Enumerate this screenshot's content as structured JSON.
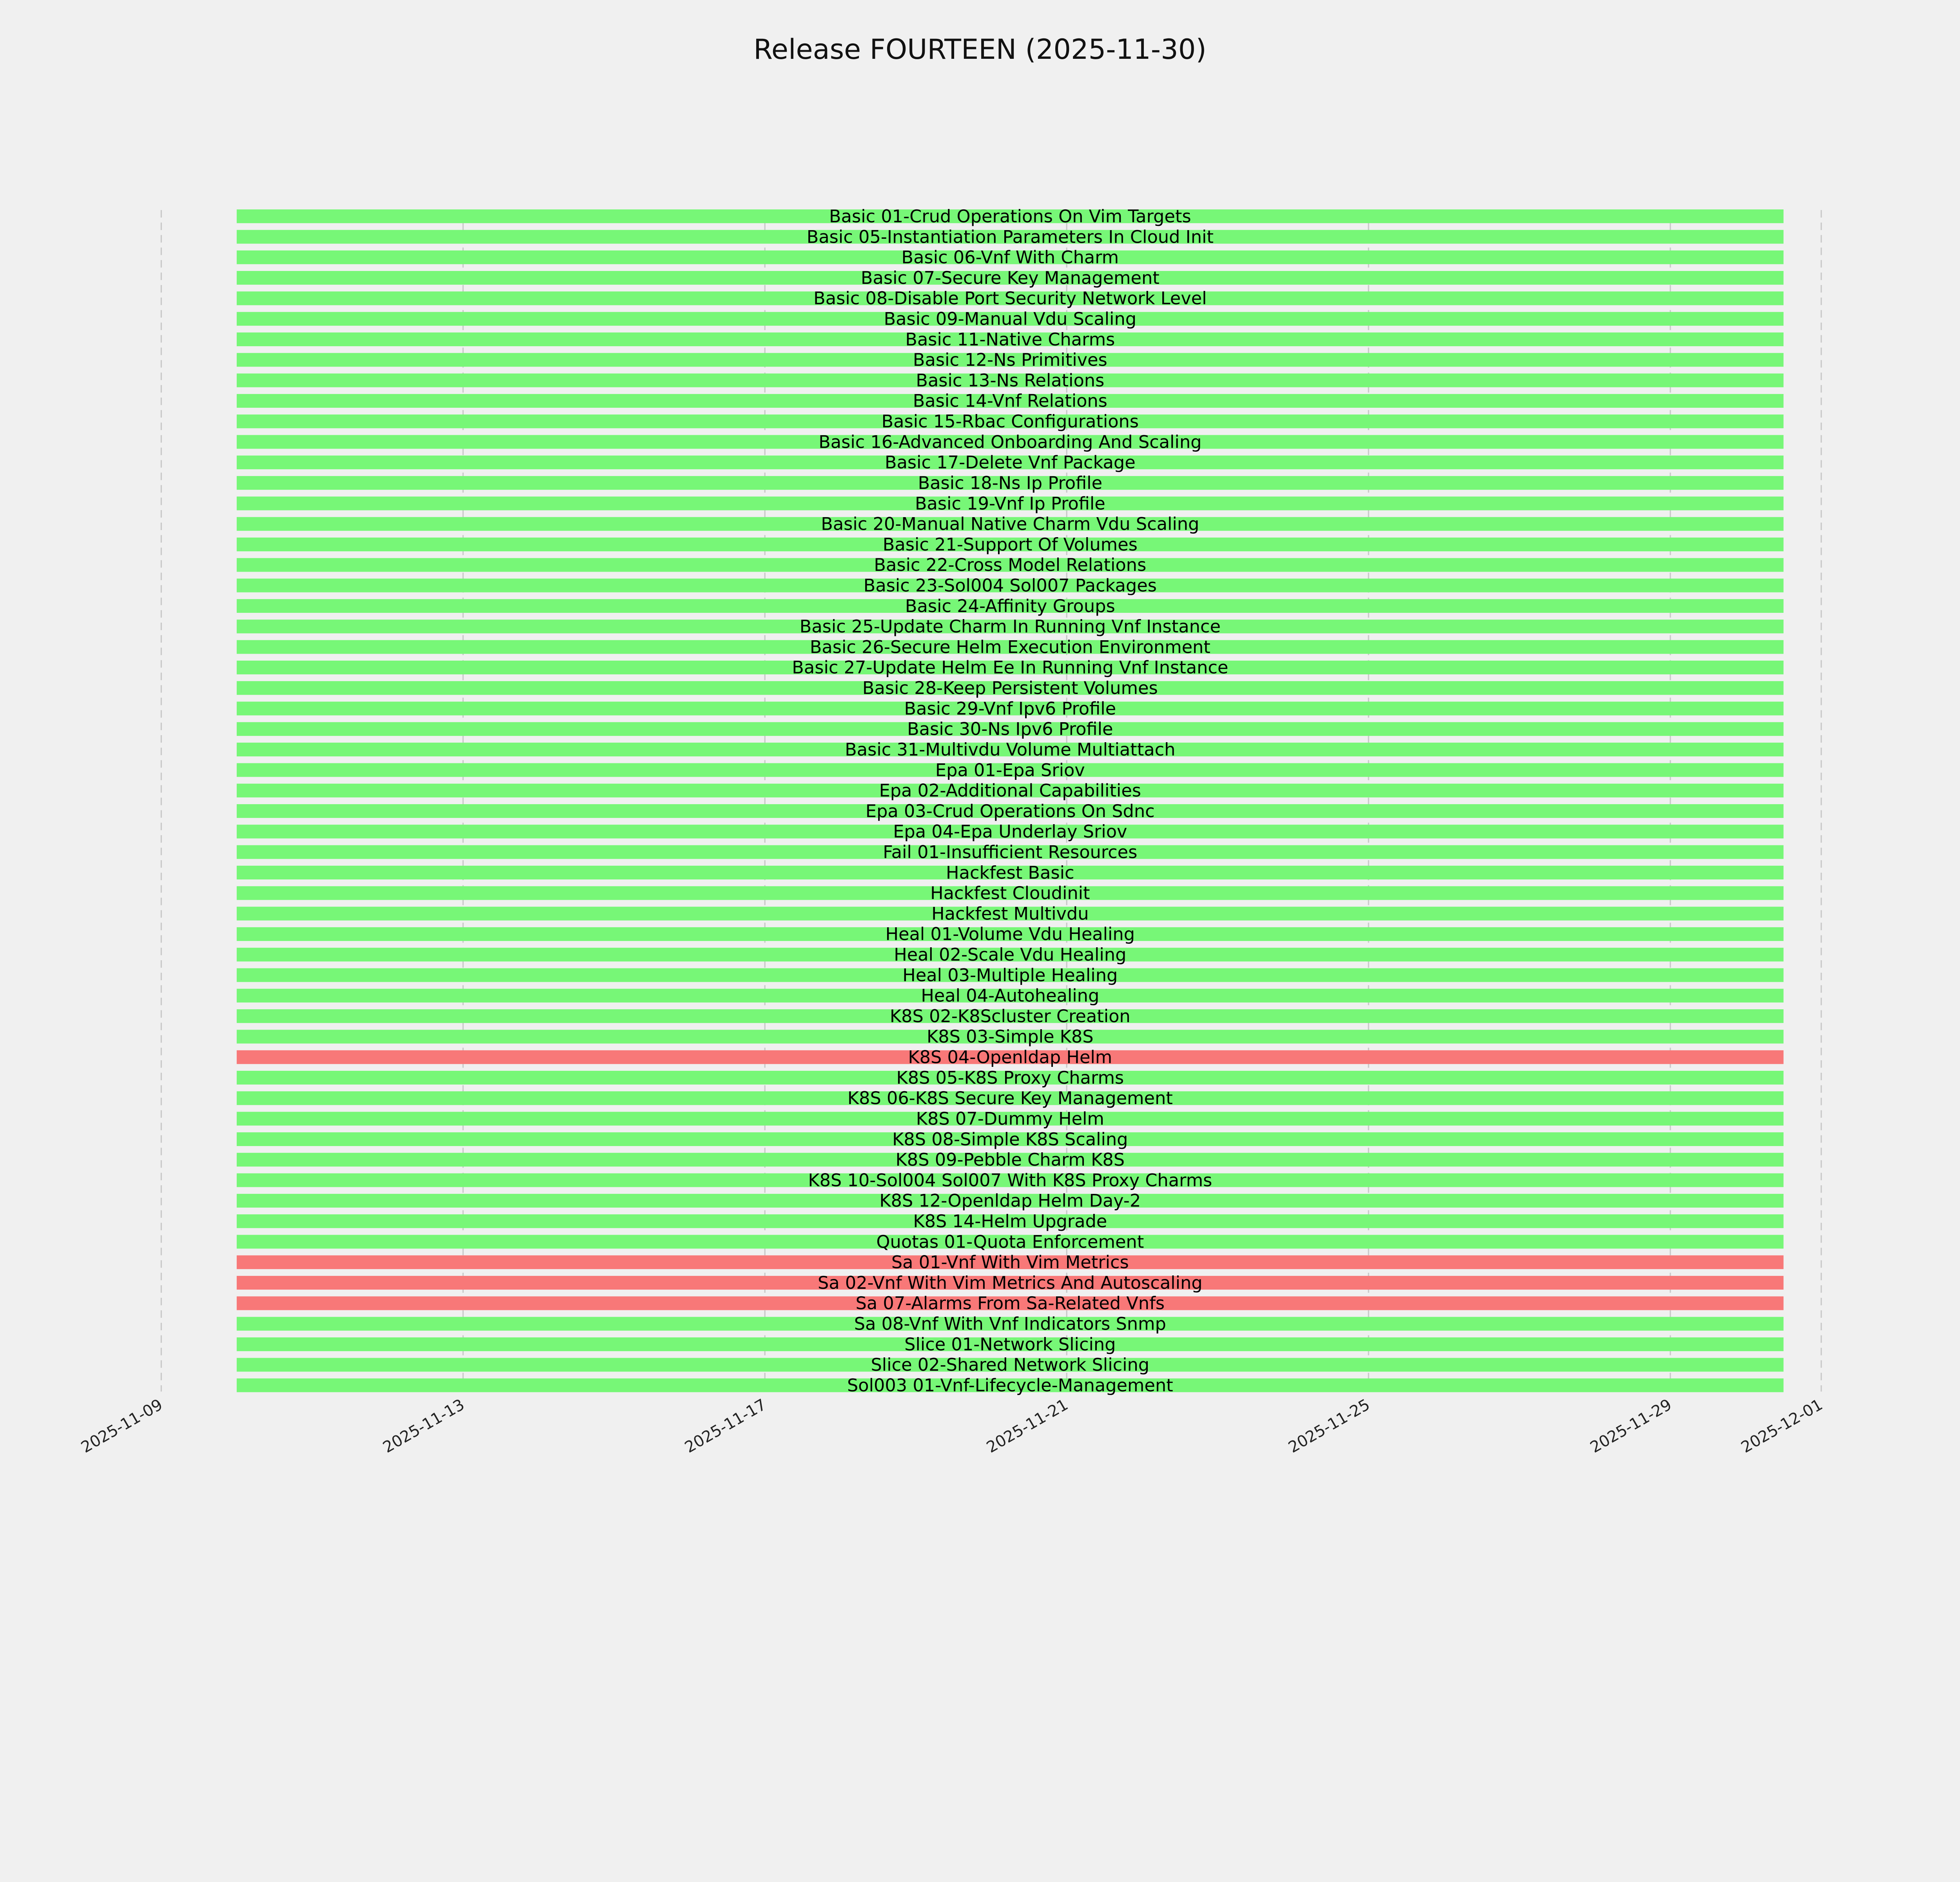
{
  "chart_data": {
    "type": "bar",
    "orientation": "horizontal-timeline",
    "title": "Release FOURTEEN (2025-11-30)",
    "xlabel": "",
    "ylabel": "",
    "xlim": [
      "2025-11-09",
      "2025-12-01"
    ],
    "x_ticks": [
      "2025-11-09",
      "2025-11-13",
      "2025-11-17",
      "2025-11-21",
      "2025-11-25",
      "2025-11-29",
      "2025-12-01"
    ],
    "grid": "vertical dashed",
    "bar_start": "2025-11-10",
    "bar_end": "2025-11-30T12:00",
    "colors": {
      "pass": "#77f777",
      "fail": "#f87878",
      "background": "#f0f0f0",
      "grid": "#c8c8c8"
    },
    "series": [
      {
        "label": "Basic 01-Crud Operations On Vim Targets",
        "status": "pass"
      },
      {
        "label": "Basic 05-Instantiation Parameters In Cloud Init",
        "status": "pass"
      },
      {
        "label": "Basic 06-Vnf With Charm",
        "status": "pass"
      },
      {
        "label": "Basic 07-Secure Key Management",
        "status": "pass"
      },
      {
        "label": "Basic 08-Disable Port Security Network Level",
        "status": "pass"
      },
      {
        "label": "Basic 09-Manual Vdu Scaling",
        "status": "pass"
      },
      {
        "label": "Basic 11-Native Charms",
        "status": "pass"
      },
      {
        "label": "Basic 12-Ns Primitives",
        "status": "pass"
      },
      {
        "label": "Basic 13-Ns Relations",
        "status": "pass"
      },
      {
        "label": "Basic 14-Vnf Relations",
        "status": "pass"
      },
      {
        "label": "Basic 15-Rbac Configurations",
        "status": "pass"
      },
      {
        "label": "Basic 16-Advanced Onboarding And Scaling",
        "status": "pass"
      },
      {
        "label": "Basic 17-Delete Vnf Package",
        "status": "pass"
      },
      {
        "label": "Basic 18-Ns Ip Profile",
        "status": "pass"
      },
      {
        "label": "Basic 19-Vnf Ip Profile",
        "status": "pass"
      },
      {
        "label": "Basic 20-Manual Native Charm Vdu Scaling",
        "status": "pass"
      },
      {
        "label": "Basic 21-Support Of Volumes",
        "status": "pass"
      },
      {
        "label": "Basic 22-Cross Model Relations",
        "status": "pass"
      },
      {
        "label": "Basic 23-Sol004 Sol007 Packages",
        "status": "pass"
      },
      {
        "label": "Basic 24-Affinity Groups",
        "status": "pass"
      },
      {
        "label": "Basic 25-Update Charm In Running Vnf Instance",
        "status": "pass"
      },
      {
        "label": "Basic 26-Secure Helm Execution Environment",
        "status": "pass"
      },
      {
        "label": "Basic 27-Update Helm Ee In Running Vnf Instance",
        "status": "pass"
      },
      {
        "label": "Basic 28-Keep Persistent Volumes",
        "status": "pass"
      },
      {
        "label": "Basic 29-Vnf Ipv6 Profile",
        "status": "pass"
      },
      {
        "label": "Basic 30-Ns Ipv6 Profile",
        "status": "pass"
      },
      {
        "label": "Basic 31-Multivdu Volume Multiattach",
        "status": "pass"
      },
      {
        "label": "Epa 01-Epa Sriov",
        "status": "pass"
      },
      {
        "label": "Epa 02-Additional Capabilities",
        "status": "pass"
      },
      {
        "label": "Epa 03-Crud Operations On Sdnc",
        "status": "pass"
      },
      {
        "label": "Epa 04-Epa Underlay Sriov",
        "status": "pass"
      },
      {
        "label": "Fail 01-Insufficient Resources",
        "status": "pass"
      },
      {
        "label": "Hackfest Basic",
        "status": "pass"
      },
      {
        "label": "Hackfest Cloudinit",
        "status": "pass"
      },
      {
        "label": "Hackfest Multivdu",
        "status": "pass"
      },
      {
        "label": "Heal 01-Volume Vdu Healing",
        "status": "pass"
      },
      {
        "label": "Heal 02-Scale Vdu Healing",
        "status": "pass"
      },
      {
        "label": "Heal 03-Multiple Healing",
        "status": "pass"
      },
      {
        "label": "Heal 04-Autohealing",
        "status": "pass"
      },
      {
        "label": "K8S 02-K8Scluster Creation",
        "status": "pass"
      },
      {
        "label": "K8S 03-Simple K8S",
        "status": "pass"
      },
      {
        "label": "K8S 04-Openldap Helm",
        "status": "fail"
      },
      {
        "label": "K8S 05-K8S Proxy Charms",
        "status": "pass"
      },
      {
        "label": "K8S 06-K8S Secure Key Management",
        "status": "pass"
      },
      {
        "label": "K8S 07-Dummy Helm",
        "status": "pass"
      },
      {
        "label": "K8S 08-Simple K8S Scaling",
        "status": "pass"
      },
      {
        "label": "K8S 09-Pebble Charm K8S",
        "status": "pass"
      },
      {
        "label": "K8S 10-Sol004 Sol007 With K8S Proxy Charms",
        "status": "pass"
      },
      {
        "label": "K8S 12-Openldap Helm Day-2",
        "status": "pass"
      },
      {
        "label": "K8S 14-Helm Upgrade",
        "status": "pass"
      },
      {
        "label": "Quotas 01-Quota Enforcement",
        "status": "pass"
      },
      {
        "label": "Sa 01-Vnf With Vim Metrics",
        "status": "fail"
      },
      {
        "label": "Sa 02-Vnf With Vim Metrics And Autoscaling",
        "status": "fail"
      },
      {
        "label": "Sa 07-Alarms From Sa-Related Vnfs",
        "status": "fail"
      },
      {
        "label": "Sa 08-Vnf With Vnf Indicators Snmp",
        "status": "pass"
      },
      {
        "label": "Slice 01-Network Slicing",
        "status": "pass"
      },
      {
        "label": "Slice 02-Shared Network Slicing",
        "status": "pass"
      },
      {
        "label": "Sol003 01-Vnf-Lifecycle-Management",
        "status": "pass"
      }
    ]
  }
}
